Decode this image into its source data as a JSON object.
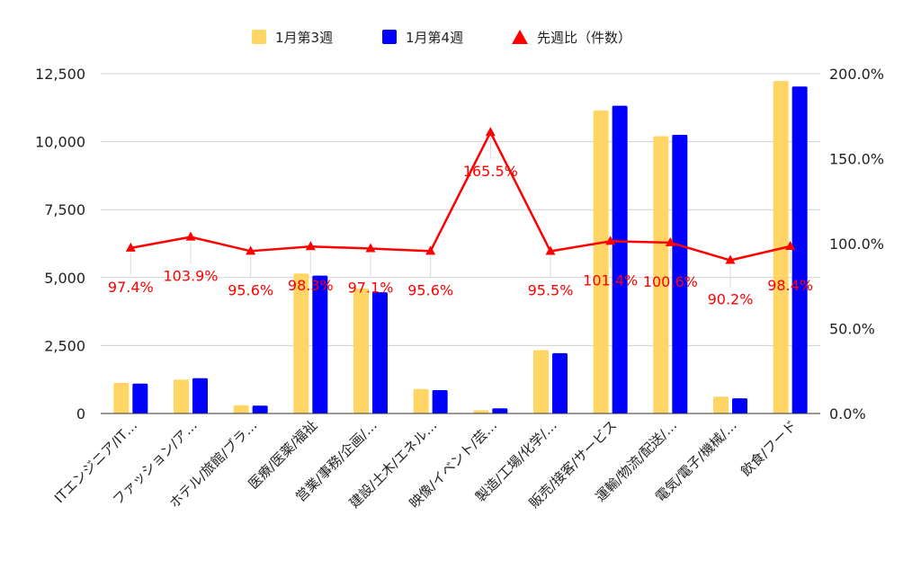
{
  "chart_data": {
    "type": "bar",
    "categories": [
      "ITエンジニア/IT…",
      "ファッション/ア…",
      "ホテル/旅館/ブラ…",
      "医療/医薬/福祉",
      "営業/事務/企画/…",
      "建設/土木/エネル…",
      "映像/イベント/芸…",
      "製造/工場/化学/…",
      "販売/接客/サービス",
      "運輸/物流/配送/…",
      "電気/電子/機械/…",
      "飲食/フード"
    ],
    "series": [
      {
        "name": "1月第3週",
        "axis": "left",
        "color": "#ffd666",
        "values": [
          1130,
          1250,
          300,
          5150,
          4600,
          900,
          120,
          2330,
          11150,
          10200,
          620,
          12230
        ]
      },
      {
        "name": "1月第4週",
        "axis": "left",
        "color": "#0000ff",
        "values": [
          1100,
          1300,
          290,
          5070,
          4460,
          860,
          190,
          2220,
          11320,
          10250,
          560,
          12030
        ]
      },
      {
        "name": "先週比（件数）",
        "axis": "right",
        "type": "line",
        "color": "#ff0000",
        "values": [
          97.4,
          103.9,
          95.6,
          98.3,
          97.1,
          95.6,
          165.5,
          95.5,
          101.4,
          100.6,
          90.2,
          98.4
        ],
        "labels": [
          "97.4%",
          "103.9%",
          "95.6%",
          "98.3%",
          "97.1%",
          "95.6%",
          "165.5%",
          "95.5%",
          "101.4%",
          "100.6%",
          "90.2%",
          "98.4%"
        ]
      }
    ],
    "y_left": {
      "ylim": [
        0,
        12500
      ],
      "ticks": [
        "0",
        "2,500",
        "5,000",
        "7,500",
        "10,000",
        "12,500"
      ]
    },
    "y_right": {
      "ylim": [
        0,
        200
      ],
      "ticks": [
        "0.0%",
        "50.0%",
        "100.0%",
        "150.0%",
        "200.0%"
      ]
    },
    "legend_position": "top",
    "grid": true
  }
}
